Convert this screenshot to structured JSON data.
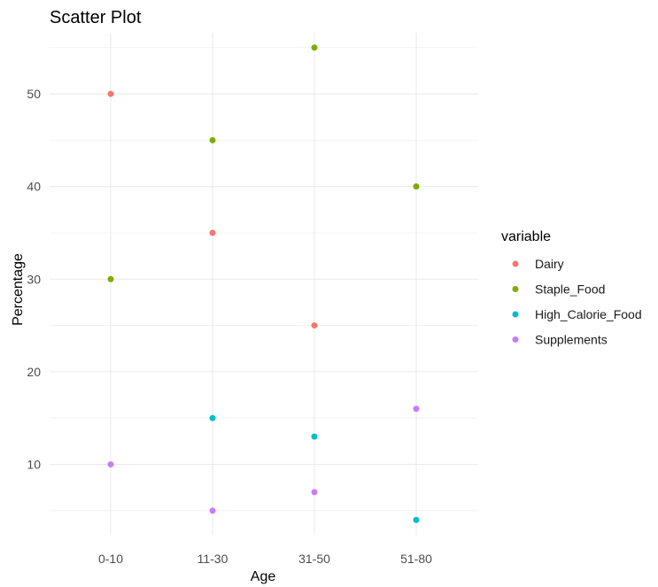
{
  "chart_data": {
    "type": "scatter",
    "title": "Scatter Plot",
    "xlabel": "Age",
    "ylabel": "Percentage",
    "categories": [
      "0-10",
      "11-30",
      "31-50",
      "51-80"
    ],
    "yticks": [
      10,
      20,
      30,
      40,
      50
    ],
    "ylim": [
      2.4,
      56.6
    ],
    "grid": true,
    "legend_title": "variable",
    "legend_position": "right",
    "series": [
      {
        "name": "Dairy",
        "color": "#F8766D",
        "values": [
          50,
          35,
          25,
          null
        ]
      },
      {
        "name": "Staple_Food",
        "color": "#7CAE00",
        "values": [
          30,
          45,
          55,
          40
        ]
      },
      {
        "name": "High_Calorie_Food",
        "color": "#00BFC4",
        "values": [
          null,
          15,
          13,
          4
        ]
      },
      {
        "name": "Supplements",
        "color": "#C77CFF",
        "values": [
          10,
          5,
          7,
          16
        ]
      }
    ]
  }
}
